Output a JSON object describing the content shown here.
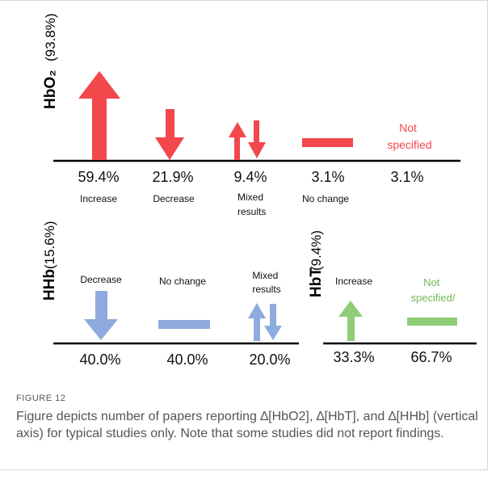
{
  "colors": {
    "hbo2": "#f2474b",
    "hhb": "#8eaadf",
    "hbt": "#8fcd77",
    "axis": "#000000"
  },
  "figure_label": "FIGURE 12",
  "caption": "Figure depicts number of papers reporting ∆[HbO2], ∆[HbT], and ∆[HHb] (vertical axis) for typical studies only. Note that some studies did not report findings.",
  "panels": {
    "hbo2": {
      "title": "HbO₂",
      "share": "(93.8%)",
      "items": [
        {
          "pct": "59.4%",
          "label": [
            "Increase"
          ],
          "icon": "arrow-up-icon",
          "value": 59.4
        },
        {
          "pct": "21.9%",
          "label": [
            "Decrease"
          ],
          "icon": "arrow-down-icon",
          "value": 21.9
        },
        {
          "pct": "9.4%",
          "label": [
            "Mixed",
            "results"
          ],
          "icon": "up-down-arrows-icon",
          "value": 9.4
        },
        {
          "pct": "3.1%",
          "label": [
            "No change"
          ],
          "icon": "no-change-bar-icon",
          "value": 3.1
        },
        {
          "pct": "3.1%",
          "label": [
            "Not",
            "specified"
          ],
          "icon": "",
          "value": 3.1
        }
      ]
    },
    "hhb": {
      "title": "HHb",
      "share": "(15.6%)",
      "items": [
        {
          "pct": "40.0%",
          "label": [
            "Decrease"
          ],
          "icon": "arrow-down-icon",
          "value": 40.0
        },
        {
          "pct": "40.0%",
          "label": [
            "No change"
          ],
          "icon": "no-change-bar-icon",
          "value": 40.0
        },
        {
          "pct": "20.0%",
          "label": [
            "Mixed",
            "results"
          ],
          "icon": "up-down-arrows-icon",
          "value": 20.0
        }
      ]
    },
    "hbt": {
      "title": "HbT",
      "share": "(9.4%)",
      "items": [
        {
          "pct": "33.3%",
          "label": [
            "Increase"
          ],
          "icon": "arrow-up-icon",
          "value": 33.3
        },
        {
          "pct": "66.7%",
          "label": [
            "Not",
            "specified/"
          ],
          "icon": "no-change-bar-icon",
          "value": 66.7
        }
      ]
    }
  }
}
